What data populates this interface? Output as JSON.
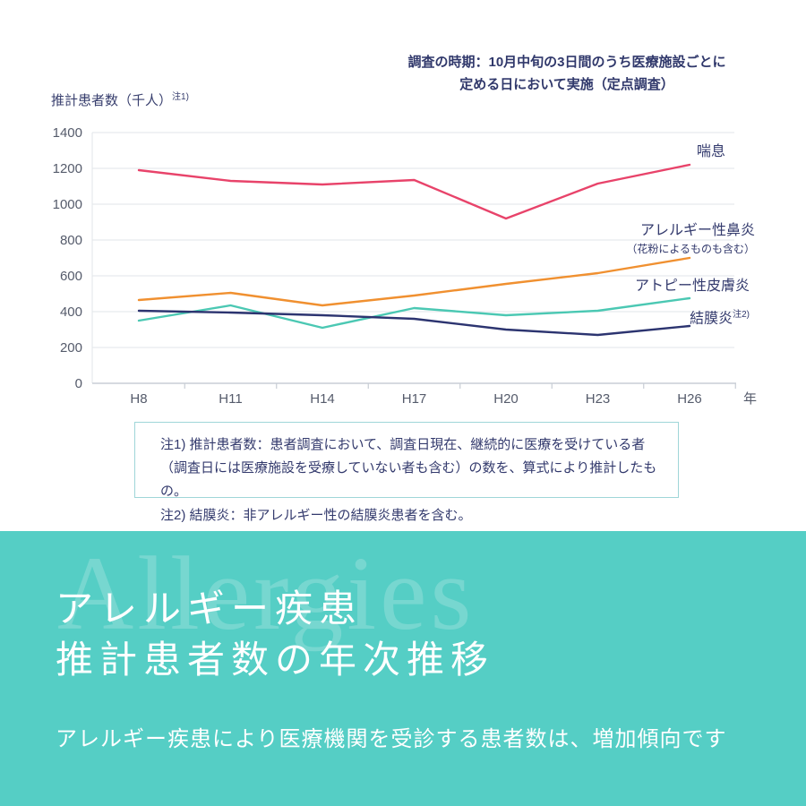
{
  "top_note": {
    "line1": "調査の時期：10月中旬の3日間のうち医療施設ごとに",
    "line2": "定める日において実施（定点調査）"
  },
  "chart_data": {
    "type": "line",
    "title": "",
    "ylabel": "推計患者数（千人）",
    "ylabel_note": "注1)",
    "xlabel": "",
    "x_axis_unit": "年",
    "x": [
      "H8",
      "H11",
      "H14",
      "H17",
      "H20",
      "H23",
      "H26"
    ],
    "ylim": [
      0,
      1400
    ],
    "ytick_step": 200,
    "grid": true,
    "legend_position": "labels-at-line-ends",
    "series": [
      {
        "name": "喘息",
        "color": "#e8436a",
        "values": [
          1190,
          1130,
          1110,
          1135,
          920,
          1115,
          1220
        ]
      },
      {
        "name": "アレルギー性鼻炎",
        "name_sub": "（花粉によるものも含む）",
        "color": "#f09030",
        "values": [
          465,
          505,
          435,
          490,
          555,
          615,
          700
        ]
      },
      {
        "name": "アトピー性皮膚炎",
        "color": "#4bc8b3",
        "values": [
          350,
          435,
          310,
          420,
          380,
          405,
          475
        ]
      },
      {
        "name": "結膜炎",
        "name_note": "注2)",
        "color": "#2c3470",
        "values": [
          405,
          395,
          380,
          360,
          300,
          270,
          320
        ]
      }
    ]
  },
  "notes": {
    "note1_line1": "注1) 推計患者数：患者調査において、調査日現在、継続的に医療を受けている者",
    "note1_line2": "（調査日には医療施設を受療していない者も含む）の数を、算式により推計したもの。",
    "note2": "注2) 結膜炎：非アレルギー性の結膜炎患者を含む。"
  },
  "banner": {
    "watermark": "Allergies",
    "title_line1": "アレルギー疾患",
    "title_line2": "推計患者数の年次推移",
    "subtitle": "アレルギー疾患により医療機関を受診する患者数は、増加傾向です"
  },
  "colors": {
    "banner_background": "#55cec5",
    "text_navy": "#333a6d",
    "grid_line": "#e2e5e9",
    "axis_line": "#c8cdd5",
    "note_border": "#9fd6d8"
  }
}
